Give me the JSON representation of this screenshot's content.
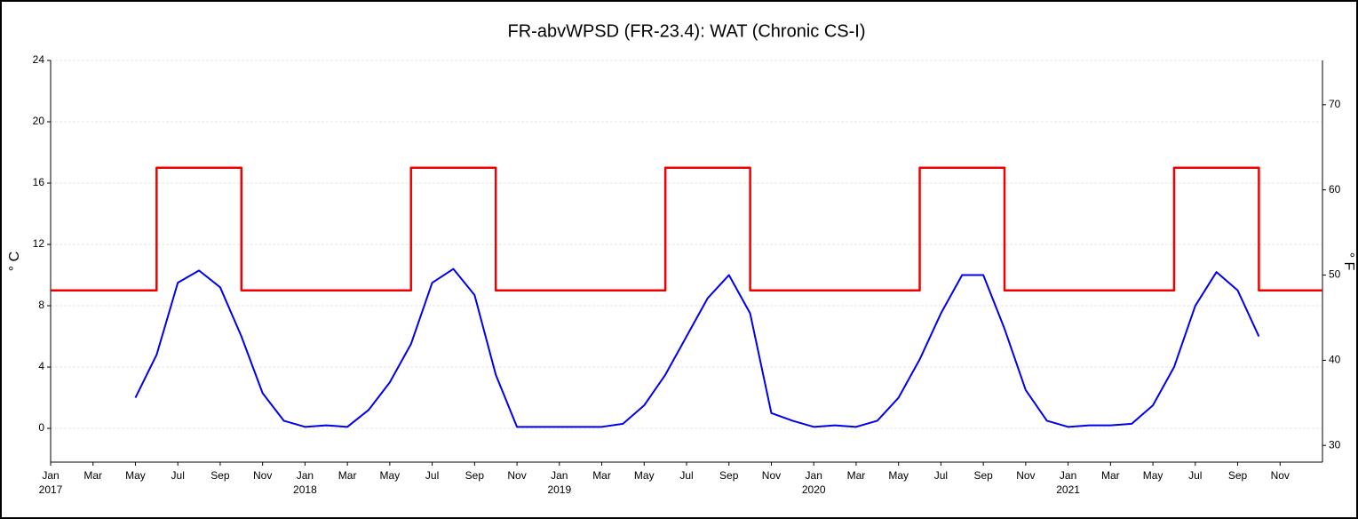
{
  "chart_data": {
    "type": "line",
    "title": "FR-abvWPSD (FR-23.4): WAT (Chronic CS-I)",
    "y_label": "° C",
    "y2_label": "° F",
    "xlim": [
      "2017-01",
      "2022-01"
    ],
    "xticks": [
      {
        "value": "2017-01",
        "label": "Jan"
      },
      {
        "value": "2017-03",
        "label": "Mar"
      },
      {
        "value": "2017-05",
        "label": "May"
      },
      {
        "value": "2017-07",
        "label": "Jul"
      },
      {
        "value": "2017-09",
        "label": "Sep"
      },
      {
        "value": "2017-11",
        "label": "Nov"
      },
      {
        "value": "2018-01",
        "label": "Jan"
      },
      {
        "value": "2018-03",
        "label": "Mar"
      },
      {
        "value": "2018-05",
        "label": "May"
      },
      {
        "value": "2018-07",
        "label": "Jul"
      },
      {
        "value": "2018-09",
        "label": "Sep"
      },
      {
        "value": "2018-11",
        "label": "Nov"
      },
      {
        "value": "2019-01",
        "label": "Jan"
      },
      {
        "value": "2019-03",
        "label": "Mar"
      },
      {
        "value": "2019-05",
        "label": "May"
      },
      {
        "value": "2019-07",
        "label": "Jul"
      },
      {
        "value": "2019-09",
        "label": "Sep"
      },
      {
        "value": "2019-11",
        "label": "Nov"
      },
      {
        "value": "2020-01",
        "label": "Jan"
      },
      {
        "value": "2020-03",
        "label": "Mar"
      },
      {
        "value": "2020-05",
        "label": "May"
      },
      {
        "value": "2020-07",
        "label": "Jul"
      },
      {
        "value": "2020-09",
        "label": "Sep"
      },
      {
        "value": "2020-11",
        "label": "Nov"
      },
      {
        "value": "2021-01",
        "label": "Jan"
      },
      {
        "value": "2021-03",
        "label": "Mar"
      },
      {
        "value": "2021-05",
        "label": "May"
      },
      {
        "value": "2021-07",
        "label": "Jul"
      },
      {
        "value": "2021-09",
        "label": "Sep"
      },
      {
        "value": "2021-11",
        "label": "Nov"
      }
    ],
    "year_ticks": [
      {
        "value": "2017-01",
        "label": "2017"
      },
      {
        "value": "2018-01",
        "label": "2018"
      },
      {
        "value": "2019-01",
        "label": "2019"
      },
      {
        "value": "2020-01",
        "label": "2020"
      },
      {
        "value": "2021-01",
        "label": "2021"
      }
    ],
    "ylim": [
      -2.2,
      24
    ],
    "yticks": [
      0,
      4,
      8,
      12,
      16,
      20,
      24
    ],
    "y2lim": [
      28.04,
      75.2
    ],
    "y2ticks": [
      30,
      40,
      50,
      60,
      70
    ],
    "grid": true,
    "series": [
      {
        "color": "#0000ee",
        "x": [
          "2017-05",
          "2017-06",
          "2017-07",
          "2017-08",
          "2017-09",
          "2017-10",
          "2017-11",
          "2017-12",
          "2018-01",
          "2018-02",
          "2018-03",
          "2018-04",
          "2018-05",
          "2018-06",
          "2018-07",
          "2018-08",
          "2018-09",
          "2018-10",
          "2018-11",
          "2018-12",
          "2019-01",
          "2019-02",
          "2019-03",
          "2019-04",
          "2019-05",
          "2019-06",
          "2019-07",
          "2019-08",
          "2019-09",
          "2019-10",
          "2019-11",
          "2019-12",
          "2020-01",
          "2020-02",
          "2020-03",
          "2020-04",
          "2020-05",
          "2020-06",
          "2020-07",
          "2020-08",
          "2020-09",
          "2020-10",
          "2020-11",
          "2020-12",
          "2021-01",
          "2021-02",
          "2021-03",
          "2021-04",
          "2021-05",
          "2021-06",
          "2021-07",
          "2021-08",
          "2021-09",
          "2021-10"
        ],
        "values": [
          2.0,
          4.8,
          9.5,
          10.3,
          9.2,
          6.0,
          2.3,
          0.5,
          0.1,
          0.2,
          0.1,
          1.2,
          3.0,
          5.5,
          9.5,
          10.4,
          8.7,
          3.5,
          0.1,
          0.1,
          0.1,
          0.1,
          0.1,
          0.3,
          1.5,
          3.5,
          6.0,
          8.5,
          10.0,
          7.5,
          1.0,
          0.5,
          0.1,
          0.2,
          0.1,
          0.5,
          2.0,
          4.5,
          7.5,
          10.0,
          10.0,
          6.5,
          2.5,
          0.5,
          0.1,
          0.2,
          0.2,
          0.3,
          1.5,
          4.0,
          8.0,
          10.2,
          9.0,
          6.0
        ]
      },
      {
        "color": "#ee0000",
        "step": true,
        "x": [
          "2017-01",
          "2017-06",
          "2017-10",
          "2018-06",
          "2018-10",
          "2019-06",
          "2019-10",
          "2020-06",
          "2020-10",
          "2021-06",
          "2021-10"
        ],
        "values": [
          9,
          17,
          9,
          17,
          9,
          17,
          9,
          17,
          9,
          17,
          9
        ]
      }
    ]
  }
}
